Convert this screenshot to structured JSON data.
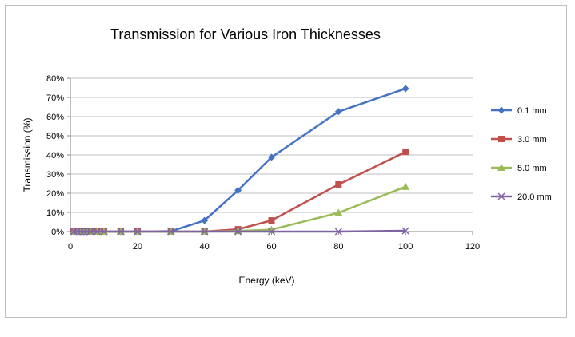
{
  "chart_data": {
    "type": "line",
    "title": "Transmission for Various Iron Thicknesses",
    "xlabel": "Energy (keV)",
    "ylabel": "Transmission (%)",
    "xlim": [
      0,
      120
    ],
    "ylim": [
      0,
      80
    ],
    "xticks": [
      "0",
      "20",
      "40",
      "60",
      "80",
      "100",
      "120"
    ],
    "yticks": [
      "0%",
      "10%",
      "20%",
      "30%",
      "40%",
      "50%",
      "60%",
      "70%",
      "80%"
    ],
    "grid": "horizontal",
    "legend": "right",
    "x": [
      1,
      2,
      3,
      4,
      5,
      6,
      8,
      10,
      15,
      20,
      30,
      40,
      50,
      60,
      80,
      100
    ],
    "series": [
      {
        "name": "0.1 mm",
        "color": "#4472c4",
        "marker": "diamond",
        "values": [
          0,
          0,
          0,
          0,
          0,
          0,
          0,
          0,
          0,
          0,
          0.2,
          5.8,
          21.5,
          38.8,
          62.6,
          74.6
        ]
      },
      {
        "name": "3.0 mm",
        "color": "#c0504d",
        "marker": "square",
        "values": [
          0,
          0,
          0,
          0,
          0,
          0,
          0,
          0,
          0,
          0,
          0,
          0,
          1.2,
          5.8,
          24.6,
          41.6
        ]
      },
      {
        "name": "5.0 mm",
        "color": "#9bbb59",
        "marker": "triangle",
        "values": [
          0,
          0,
          0,
          0,
          0,
          0,
          0,
          0,
          0,
          0,
          0,
          0,
          0.3,
          1.0,
          9.8,
          23.4
        ]
      },
      {
        "name": "20.0 mm",
        "color": "#8064a2",
        "marker": "x",
        "values": [
          0,
          0,
          0,
          0,
          0,
          0,
          0,
          0,
          0,
          0,
          0,
          0,
          0,
          0,
          0,
          0.4
        ]
      }
    ]
  }
}
